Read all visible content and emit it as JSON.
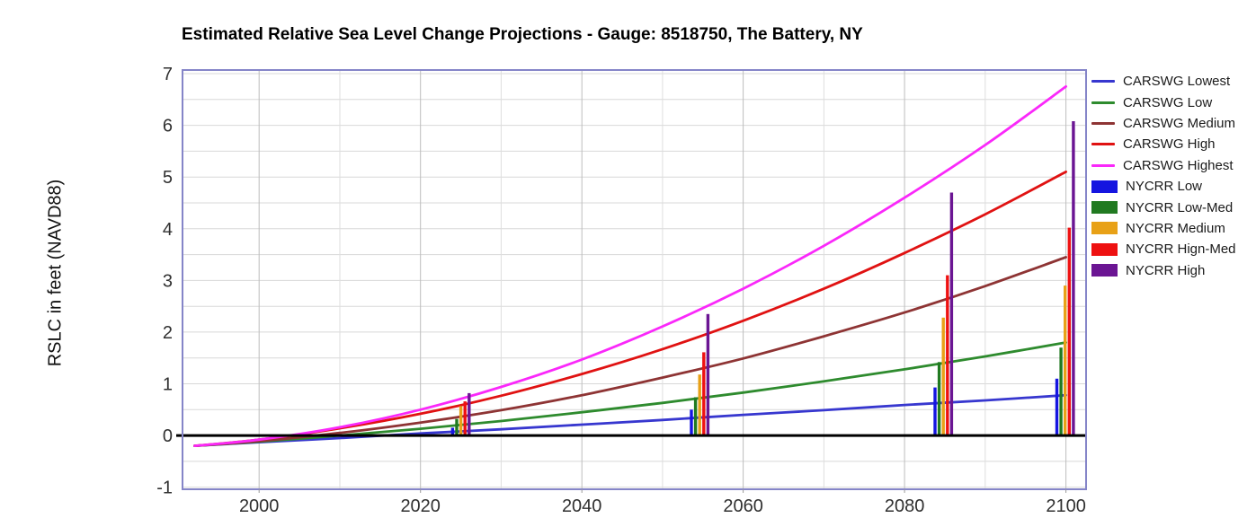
{
  "chart_data": {
    "type": "line+bar",
    "title": "Estimated Relative Sea Level Change Projections - Gauge: 8518750, The Battery, NY",
    "xlabel": "",
    "ylabel": "RSLC in feet (NAVD88)",
    "xlim": [
      1990.5,
      2102.5
    ],
    "ylim": [
      -1.04,
      7.07
    ],
    "grid": {
      "on": true,
      "x_step_years": 10,
      "y_step_feet": 0.5,
      "gridline_color": "#d8d8d8",
      "x_major_color": "#bdbdbd",
      "x_minor_color": "#dedede"
    },
    "legend_position": "right",
    "plot_border_color": "#8585c8",
    "zero_line": {
      "value": 0,
      "color": "#000000"
    },
    "years": [
      1992,
      2000,
      2010,
      2020,
      2030,
      2040,
      2050,
      2060,
      2070,
      2080,
      2090,
      2100
    ],
    "line_series": [
      {
        "name": "CARSWG Lowest",
        "color": "#3737cf",
        "values": [
          -0.2,
          -0.13,
          -0.05,
          0.04,
          0.12,
          0.21,
          0.3,
          0.4,
          0.49,
          0.59,
          0.68,
          0.78
        ]
      },
      {
        "name": "CARSWG Low",
        "color": "#2e8b2e",
        "values": [
          -0.2,
          -0.12,
          0.0,
          0.13,
          0.28,
          0.45,
          0.63,
          0.83,
          1.05,
          1.28,
          1.53,
          1.8
        ]
      },
      {
        "name": "CARSWG Medium",
        "color": "#8e3434",
        "values": [
          -0.2,
          -0.11,
          0.05,
          0.25,
          0.49,
          0.78,
          1.12,
          1.49,
          1.92,
          2.38,
          2.89,
          3.45
        ]
      },
      {
        "name": "CARSWG High",
        "color": "#e01212",
        "values": [
          -0.2,
          -0.08,
          0.14,
          0.42,
          0.77,
          1.19,
          1.67,
          2.22,
          2.84,
          3.53,
          4.28,
          5.1
        ]
      },
      {
        "name": "CARSWG Highest",
        "color": "#fa28fa",
        "values": [
          -0.2,
          -0.08,
          0.16,
          0.5,
          0.94,
          1.47,
          2.11,
          2.84,
          3.67,
          4.6,
          5.62,
          6.75
        ]
      }
    ],
    "bar_clusters": {
      "center_years": [
        2025.0,
        2054.6,
        2084.8,
        2099.9
      ]
    },
    "bar_series": [
      {
        "name": "NYCRR Low",
        "color": "#1515e0",
        "values": [
          0.15,
          0.5,
          0.93,
          1.1
        ]
      },
      {
        "name": "NYCRR Low-Med",
        "color": "#217a21",
        "values": [
          0.32,
          0.74,
          1.42,
          1.7
        ]
      },
      {
        "name": "NYCRR Medium",
        "color": "#e8a117",
        "values": [
          0.57,
          1.18,
          2.28,
          2.9
        ]
      },
      {
        "name": "NYCRR Hign-Med",
        "color": "#ee1111",
        "values": [
          0.66,
          1.61,
          3.1,
          4.02
        ]
      },
      {
        "name": "NYCRR High",
        "color": "#6b1593",
        "values": [
          0.82,
          2.35,
          4.7,
          6.08
        ]
      }
    ]
  },
  "x_axis": {
    "tick_values": [
      2000,
      2020,
      2040,
      2060,
      2080,
      2100
    ]
  },
  "y_axis": {
    "label": "RSLC in feet (NAVD88)",
    "tick_values": [
      7,
      6,
      5,
      4,
      3,
      2,
      1,
      0,
      -1
    ]
  },
  "legend": {
    "items": [
      {
        "label": "CARSWG Lowest",
        "swatch": "line",
        "color": "#3737cf"
      },
      {
        "label": "CARSWG Low",
        "swatch": "line",
        "color": "#2e8b2e"
      },
      {
        "label": "CARSWG Medium",
        "swatch": "line",
        "color": "#8e3434"
      },
      {
        "label": "CARSWG High",
        "swatch": "line",
        "color": "#e01212"
      },
      {
        "label": "CARSWG Highest",
        "swatch": "line",
        "color": "#fa28fa"
      },
      {
        "label": "NYCRR Low",
        "swatch": "box",
        "color": "#1515e0"
      },
      {
        "label": "NYCRR Low-Med",
        "swatch": "box",
        "color": "#217a21"
      },
      {
        "label": "NYCRR Medium",
        "swatch": "box",
        "color": "#e8a117"
      },
      {
        "label": "NYCRR Hign-Med",
        "swatch": "box",
        "color": "#ee1111"
      },
      {
        "label": "NYCRR High",
        "swatch": "box",
        "color": "#6b1593"
      }
    ]
  }
}
